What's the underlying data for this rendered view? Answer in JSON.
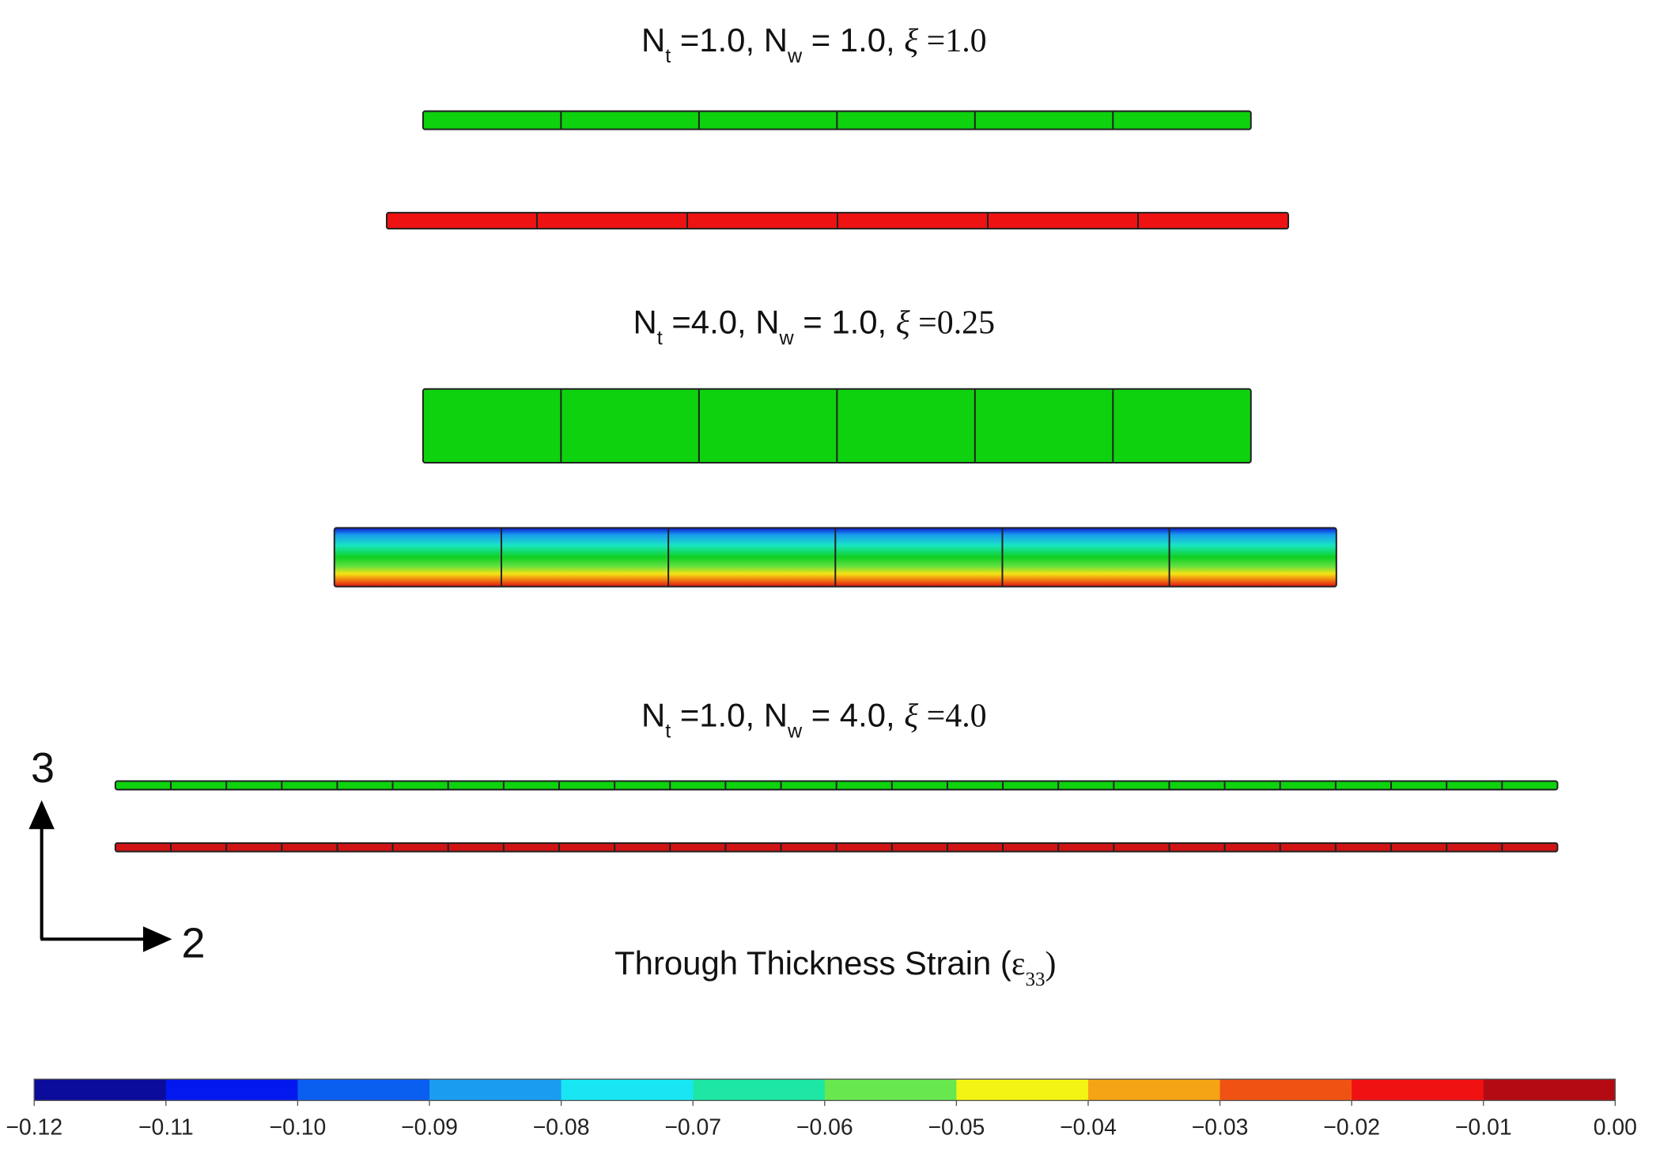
{
  "panels": [
    {
      "label": [
        {
          "text": "N"
        },
        {
          "text": "t",
          "sub": true
        },
        {
          "text": " =1.0, N"
        },
        {
          "text": "w",
          "sub": true
        },
        {
          "text": " = 1.0, "
        },
        {
          "text": "ξ",
          "serif": true
        },
        {
          "text": " =1.0",
          "serif": true
        }
      ]
    },
    {
      "label": [
        {
          "text": "N"
        },
        {
          "text": "t",
          "sub": true
        },
        {
          "text": " =4.0, N"
        },
        {
          "text": "w",
          "sub": true
        },
        {
          "text": " = 1.0, "
        },
        {
          "text": "ξ",
          "serif": true
        },
        {
          "text": " =0.25",
          "serif": true
        }
      ]
    },
    {
      "label": [
        {
          "text": "N"
        },
        {
          "text": "t",
          "sub": true
        },
        {
          "text": " =1.0, N"
        },
        {
          "text": "w",
          "sub": true
        },
        {
          "text": " = 4.0, "
        },
        {
          "text": "ξ",
          "serif": true
        },
        {
          "text": " =4.0",
          "serif": true
        }
      ]
    }
  ],
  "axes": {
    "vertical": "3",
    "horizontal": "2"
  },
  "colorbar": {
    "title": [
      {
        "text": "Through Thickness Strain ("
      },
      {
        "text": "ε",
        "serif": true
      },
      {
        "text": "33",
        "sub": true,
        "serif": true
      },
      {
        "text": ")",
        "serif": true
      }
    ],
    "lim": [
      -0.12,
      0
    ],
    "colors": [
      "#0b0b9c",
      "#0318ee",
      "#0a5ef0",
      "#1a9cf0",
      "#18e6f2",
      "#1ee6a4",
      "#68e84e",
      "#f4f414",
      "#f4a414",
      "#f05214",
      "#f01212",
      "#b40a14"
    ],
    "ticks": [
      {
        "value": -0.12,
        "label": "−0.12"
      },
      {
        "value": -0.11,
        "label": "−0.11"
      },
      {
        "value": -0.1,
        "label": "−0.10"
      },
      {
        "value": -0.09,
        "label": "−0.09"
      },
      {
        "value": -0.08,
        "label": "−0.08"
      },
      {
        "value": -0.07,
        "label": "−0.07"
      },
      {
        "value": -0.06,
        "label": "−0.06"
      },
      {
        "value": -0.05,
        "label": "−0.05"
      },
      {
        "value": -0.04,
        "label": "−0.04"
      },
      {
        "value": -0.03,
        "label": "−0.03"
      },
      {
        "value": -0.02,
        "label": "−0.02"
      },
      {
        "value": -0.01,
        "label": "−0.01"
      },
      {
        "value": 0,
        "label": "0.00"
      }
    ]
  }
}
